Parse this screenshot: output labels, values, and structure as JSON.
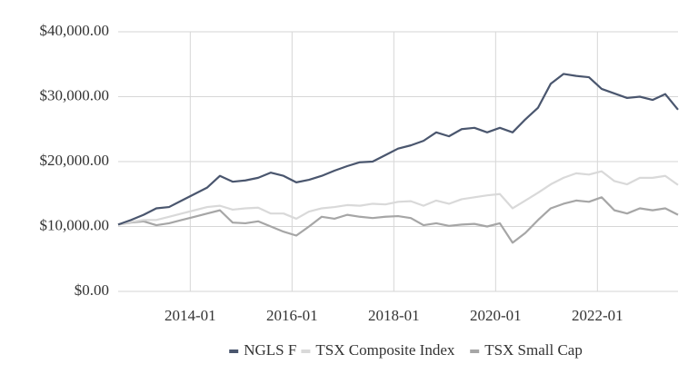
{
  "chart_data": {
    "type": "line",
    "x": [
      "2012-08",
      "2012-11",
      "2013-02",
      "2013-05",
      "2013-08",
      "2013-11",
      "2014-02",
      "2014-05",
      "2014-08",
      "2014-11",
      "2015-02",
      "2015-05",
      "2015-08",
      "2015-11",
      "2016-02",
      "2016-05",
      "2016-08",
      "2016-11",
      "2017-02",
      "2017-05",
      "2017-08",
      "2017-11",
      "2018-02",
      "2018-05",
      "2018-08",
      "2018-11",
      "2019-02",
      "2019-05",
      "2019-08",
      "2019-11",
      "2020-02",
      "2020-05",
      "2020-08",
      "2020-11",
      "2021-02",
      "2021-05",
      "2021-08",
      "2021-11",
      "2022-02",
      "2022-05",
      "2022-08",
      "2022-11",
      "2023-02",
      "2023-05",
      "2023-08"
    ],
    "series": [
      {
        "name": "NGLS F",
        "color": "#4a566e",
        "values": [
          10300,
          11000,
          11800,
          12800,
          13000,
          14000,
          15000,
          16000,
          17800,
          16900,
          17100,
          17500,
          18300,
          17800,
          16800,
          17200,
          17800,
          18600,
          19300,
          19900,
          20000,
          21000,
          22000,
          22500,
          23200,
          24500,
          23900,
          25000,
          25200,
          24500,
          25200,
          24500,
          26500,
          28300,
          32000,
          33500,
          33200,
          33000,
          31200,
          30500,
          29800,
          30000,
          29500,
          30400,
          28000
        ]
      },
      {
        "name": "TSX Composite Index",
        "color": "#d9d9d9",
        "values": [
          10300,
          10700,
          11000,
          11000,
          11500,
          12000,
          12500,
          13000,
          13200,
          12600,
          12800,
          12900,
          12000,
          12000,
          11200,
          12300,
          12800,
          13000,
          13300,
          13200,
          13500,
          13400,
          13800,
          13900,
          13200,
          14000,
          13500,
          14200,
          14500,
          14800,
          15000,
          12800,
          14000,
          15200,
          16500,
          17500,
          18200,
          18000,
          18500,
          17000,
          16500,
          17500,
          17500,
          17800,
          16400
        ]
      },
      {
        "name": "TSX Small Cap",
        "color": "#a6a6a6",
        "values": [
          10300,
          10600,
          10800,
          10200,
          10500,
          11000,
          11500,
          12000,
          12500,
          10600,
          10500,
          10800,
          10000,
          9200,
          8600,
          10000,
          11500,
          11200,
          11800,
          11500,
          11300,
          11500,
          11600,
          11300,
          10200,
          10500,
          10100,
          10300,
          10400,
          10000,
          10500,
          7500,
          9000,
          11000,
          12800,
          13500,
          14000,
          13800,
          14500,
          12500,
          12000,
          12800,
          12500,
          12800,
          11800
        ]
      }
    ],
    "xlim": [
      "2012-08",
      "2023-08"
    ],
    "xticks": [
      "2014-01",
      "2016-01",
      "2018-01",
      "2020-01",
      "2022-01"
    ],
    "ylim": [
      0,
      40000
    ],
    "yticks": [
      {
        "value": 0,
        "label": "$0.00"
      },
      {
        "value": 10000,
        "label": "$10,000.00"
      },
      {
        "value": 20000,
        "label": "$20,000.00"
      },
      {
        "value": 30000,
        "label": "$30,000.00"
      },
      {
        "value": 40000,
        "label": "$40,000.00"
      }
    ],
    "grid": true,
    "legend": "bottom"
  }
}
